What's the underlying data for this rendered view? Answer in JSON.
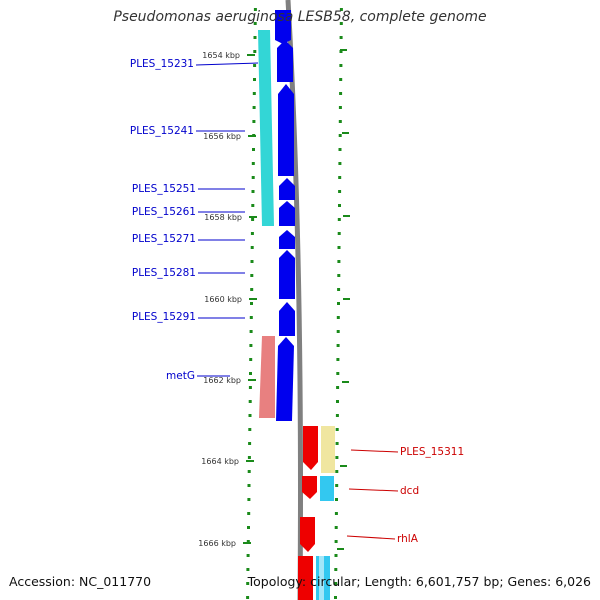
{
  "title": "Pseudomonas aeruginosa LESB58, complete genome",
  "footer": {
    "accession": "Accession: NC_011770",
    "summary": "Topology: circular; Length: 6,601,757 bp; Genes: 6,026"
  },
  "colors": {
    "cds_forward": "#0000ee",
    "cds_reverse": "#ee0000",
    "gene_forward": "#33d6d6",
    "gene_forward_alt": "#e88080",
    "gene_reverse": "#f0e6a0",
    "gene_reverse_alt": "#33c8f0",
    "backbone": "#808080",
    "tick": "#1a8a1a",
    "label_forward": "#0000cc",
    "label_reverse": "#cc0000"
  },
  "scale_ticks": [
    "1654 kbp",
    "1656 kbp",
    "1658 kbp",
    "1660 kbp",
    "1662 kbp",
    "1664 kbp",
    "1666 kbp"
  ],
  "forward_labels": [
    "PLES_15231",
    "PLES_15241",
    "PLES_15251",
    "PLES_15261",
    "PLES_15271",
    "PLES_15281",
    "PLES_15291",
    "metG"
  ],
  "reverse_labels": [
    "PLES_15311",
    "dcd",
    "rhlA"
  ]
}
